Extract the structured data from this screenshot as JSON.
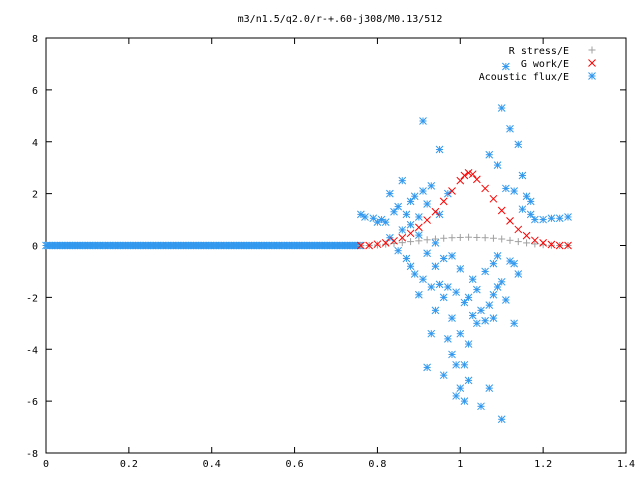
{
  "chart_data": {
    "type": "scatter",
    "title": "m3/n1.5/q2.0/r-+.60-j308/M0.13/512",
    "xlabel": "",
    "ylabel": "",
    "xlim": [
      0,
      1.4
    ],
    "ylim": [
      -8,
      8
    ],
    "x_ticks": [
      "0",
      "0.2",
      "0.4",
      "0.6",
      "0.8",
      "1",
      "1.2",
      "1.4"
    ],
    "y_ticks": [
      "-8",
      "-6",
      "-4",
      "-2",
      "0",
      "2",
      "4",
      "6",
      "8"
    ],
    "grid": false,
    "legend_position": "top-right",
    "series": [
      {
        "name": "R stress/E",
        "marker": "plus",
        "color": "#a0a0a0",
        "points": [
          [
            0.76,
            0.0
          ],
          [
            0.78,
            0.0
          ],
          [
            0.8,
            0.02
          ],
          [
            0.82,
            0.05
          ],
          [
            0.84,
            0.08
          ],
          [
            0.86,
            0.11
          ],
          [
            0.88,
            0.15
          ],
          [
            0.9,
            0.18
          ],
          [
            0.92,
            0.22
          ],
          [
            0.94,
            0.25
          ],
          [
            0.96,
            0.28
          ],
          [
            0.98,
            0.3
          ],
          [
            1.0,
            0.31
          ],
          [
            1.02,
            0.32
          ],
          [
            1.04,
            0.31
          ],
          [
            1.06,
            0.3
          ],
          [
            1.08,
            0.28
          ],
          [
            1.1,
            0.25
          ],
          [
            1.12,
            0.2
          ],
          [
            1.14,
            0.15
          ],
          [
            1.16,
            0.1
          ],
          [
            1.18,
            0.06
          ],
          [
            1.2,
            0.03
          ],
          [
            1.22,
            0.01
          ],
          [
            1.24,
            0.0
          ],
          [
            1.26,
            0.0
          ]
        ]
      },
      {
        "name": "G work/E",
        "marker": "cross",
        "color": "#ff0000",
        "points": [
          [
            0.76,
            0.0
          ],
          [
            0.78,
            0.0
          ],
          [
            0.8,
            0.05
          ],
          [
            0.82,
            0.1
          ],
          [
            0.84,
            0.18
          ],
          [
            0.86,
            0.3
          ],
          [
            0.88,
            0.47
          ],
          [
            0.9,
            0.7
          ],
          [
            0.92,
            0.98
          ],
          [
            0.94,
            1.3
          ],
          [
            0.96,
            1.7
          ],
          [
            0.98,
            2.1
          ],
          [
            1.0,
            2.5
          ],
          [
            1.01,
            2.7
          ],
          [
            1.02,
            2.8
          ],
          [
            1.03,
            2.75
          ],
          [
            1.04,
            2.55
          ],
          [
            1.06,
            2.2
          ],
          [
            1.08,
            1.8
          ],
          [
            1.1,
            1.35
          ],
          [
            1.12,
            0.95
          ],
          [
            1.14,
            0.62
          ],
          [
            1.16,
            0.38
          ],
          [
            1.18,
            0.2
          ],
          [
            1.2,
            0.1
          ],
          [
            1.22,
            0.04
          ],
          [
            1.24,
            0.0
          ],
          [
            1.26,
            0.0
          ]
        ]
      },
      {
        "name": "Acoustic flux/E",
        "marker": "star",
        "color": "#3399ee",
        "points": [
          [
            0.76,
            1.2
          ],
          [
            0.77,
            1.1
          ],
          [
            0.79,
            1.05
          ],
          [
            0.8,
            0.9
          ],
          [
            0.81,
            1.0
          ],
          [
            0.82,
            0.9
          ],
          [
            0.83,
            0.3
          ],
          [
            0.83,
            2.0
          ],
          [
            0.84,
            1.3
          ],
          [
            0.85,
            1.5
          ],
          [
            0.85,
            -0.2
          ],
          [
            0.86,
            0.6
          ],
          [
            0.86,
            2.5
          ],
          [
            0.87,
            1.2
          ],
          [
            0.87,
            -0.5
          ],
          [
            0.88,
            0.8
          ],
          [
            0.88,
            1.7
          ],
          [
            0.88,
            -0.8
          ],
          [
            0.89,
            -1.1
          ],
          [
            0.89,
            1.9
          ],
          [
            0.9,
            -1.9
          ],
          [
            0.9,
            0.4
          ],
          [
            0.9,
            1.1
          ],
          [
            0.91,
            2.1
          ],
          [
            0.91,
            -1.3
          ],
          [
            0.91,
            4.8
          ],
          [
            0.92,
            -0.3
          ],
          [
            0.92,
            1.6
          ],
          [
            0.92,
            -4.7
          ],
          [
            0.93,
            2.3
          ],
          [
            0.93,
            -3.4
          ],
          [
            0.93,
            -1.6
          ],
          [
            0.94,
            -0.8
          ],
          [
            0.94,
            0.1
          ],
          [
            0.94,
            -2.5
          ],
          [
            0.95,
            3.7
          ],
          [
            0.95,
            -1.5
          ],
          [
            0.95,
            1.2
          ],
          [
            0.96,
            -2.0
          ],
          [
            0.96,
            -0.5
          ],
          [
            0.96,
            -5.0
          ],
          [
            0.97,
            -1.6
          ],
          [
            0.97,
            2.0
          ],
          [
            0.97,
            -3.6
          ],
          [
            0.98,
            -4.2
          ],
          [
            0.98,
            -0.4
          ],
          [
            0.98,
            -2.8
          ],
          [
            0.99,
            -4.6
          ],
          [
            0.99,
            -1.8
          ],
          [
            0.99,
            -5.8
          ],
          [
            1.0,
            -3.4
          ],
          [
            1.0,
            -0.9
          ],
          [
            1.0,
            -5.5
          ],
          [
            1.01,
            -2.2
          ],
          [
            1.01,
            -4.6
          ],
          [
            1.01,
            -6.0
          ],
          [
            1.02,
            -2.0
          ],
          [
            1.02,
            -3.8
          ],
          [
            1.02,
            -5.2
          ],
          [
            1.03,
            -1.3
          ],
          [
            1.03,
            -2.7
          ],
          [
            1.04,
            -3.0
          ],
          [
            1.04,
            -1.7
          ],
          [
            1.05,
            -2.5
          ],
          [
            1.05,
            -6.2
          ],
          [
            1.06,
            -2.9
          ],
          [
            1.06,
            -1.0
          ],
          [
            1.07,
            3.5
          ],
          [
            1.07,
            -2.3
          ],
          [
            1.07,
            -5.5
          ],
          [
            1.08,
            -1.9
          ],
          [
            1.08,
            -0.7
          ],
          [
            1.08,
            -2.8
          ],
          [
            1.09,
            3.1
          ],
          [
            1.09,
            -0.4
          ],
          [
            1.09,
            -1.6
          ],
          [
            1.1,
            5.3
          ],
          [
            1.1,
            -1.4
          ],
          [
            1.1,
            -6.7
          ],
          [
            1.11,
            2.2
          ],
          [
            1.11,
            -2.1
          ],
          [
            1.11,
            6.9
          ],
          [
            1.12,
            4.5
          ],
          [
            1.12,
            -0.6
          ],
          [
            1.13,
            -3.0
          ],
          [
            1.13,
            -0.7
          ],
          [
            1.13,
            2.1
          ],
          [
            1.14,
            3.9
          ],
          [
            1.14,
            -1.1
          ],
          [
            1.15,
            1.4
          ],
          [
            1.15,
            2.7
          ],
          [
            1.16,
            1.9
          ],
          [
            1.17,
            1.7
          ],
          [
            1.17,
            1.2
          ],
          [
            1.18,
            1.0
          ],
          [
            1.2,
            1.0
          ],
          [
            1.22,
            1.05
          ],
          [
            1.24,
            1.05
          ],
          [
            1.26,
            1.1
          ]
        ]
      }
    ],
    "baseline_band": {
      "series": "Acoustic flux/E",
      "x_range": [
        0.0,
        0.76
      ],
      "y": 0.0
    }
  }
}
